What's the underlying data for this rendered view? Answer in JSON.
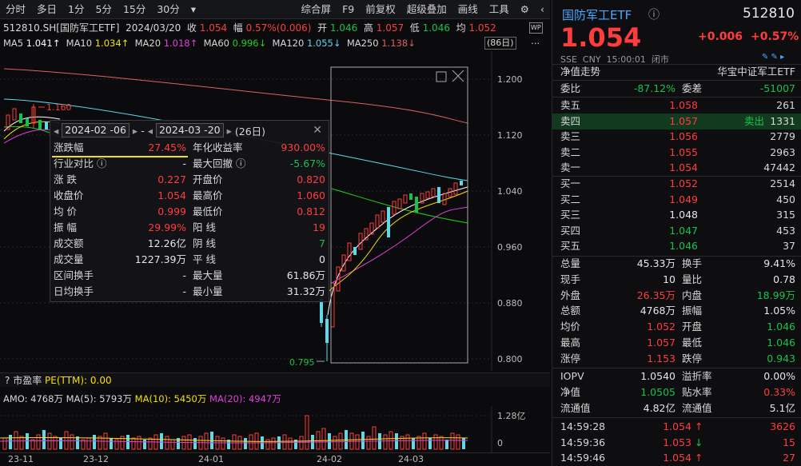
{
  "toolbar": {
    "left": [
      "分时",
      "多日",
      "1分",
      "5分",
      "15分",
      "30分"
    ],
    "right": [
      "综合屏",
      "F9",
      "前复权",
      "超级叠加",
      "画线",
      "工具"
    ]
  },
  "info": {
    "code_name": "512810.SH[国防军工ETF]",
    "date": "2024/03/20",
    "close_label": "收",
    "close": "1.054",
    "range_label": "幅",
    "range": "0.57%(0.006)",
    "open_label": "开",
    "open": "1.046",
    "high_label": "高",
    "high": "1.057",
    "low_label": "低",
    "low": "1.046",
    "avg_label": "均",
    "avg": "1.052",
    "wp": "WP"
  },
  "ma": {
    "ma5_label": "MA5",
    "ma5": "1.041↑",
    "ma10_label": "MA10",
    "ma10": "1.034↑",
    "ma20_label": "MA20",
    "ma20": "1.018↑",
    "ma60_label": "MA60",
    "ma60": "0.996↓",
    "ma120_label": "MA120",
    "ma120": "1.055↓",
    "ma250_label": "MA250",
    "ma250": "1.138↓",
    "days": "(86日)",
    "colors": {
      "ma5": "#ffffff",
      "ma10": "#f5e000",
      "ma20": "#e040e0",
      "ma60": "#20d020",
      "ma120": "#5fd8e8",
      "ma250": "#e06060"
    }
  },
  "chart": {
    "y_ticks": [
      "1.200",
      "1.120",
      "1.040",
      "0.960",
      "0.880",
      "0.800"
    ],
    "high_marker": "1.160",
    "low_marker": "0.795",
    "x_ticks": [
      "23-11",
      "23-12",
      "24-01",
      "24-02",
      "24-03"
    ]
  },
  "popup": {
    "start": "2024-02 -06",
    "dash": "-",
    "end": "2024-03 -20",
    "days": "(26日)",
    "rows": [
      {
        "l": "涨跌幅",
        "lv": "27.45%",
        "lc": "red",
        "r": "年化收益率",
        "rv": "930.00%",
        "rc": "red"
      },
      {
        "l": "行业对比 ⓘ",
        "lv": "-",
        "lc": "white",
        "r": "最大回撤 ⓘ",
        "rv": "-5.67%",
        "rc": "green"
      },
      {
        "l": "涨  跌",
        "lv": "0.227",
        "lc": "red",
        "r": "开盘价",
        "rv": "0.820",
        "rc": "red"
      },
      {
        "l": "收盘价",
        "lv": "1.054",
        "lc": "red",
        "r": "最高价",
        "rv": "1.060",
        "rc": "red"
      },
      {
        "l": "均  价",
        "lv": "0.999",
        "lc": "red",
        "r": "最低价",
        "rv": "0.812",
        "rc": "red"
      },
      {
        "l": "振  幅",
        "lv": "29.99%",
        "lc": "red",
        "r": "阳  线",
        "rv": "19",
        "rc": "red"
      },
      {
        "l": "成交额",
        "lv": "12.26亿",
        "lc": "white",
        "r": "阴  线",
        "rv": "7",
        "rc": "green"
      },
      {
        "l": "成交量",
        "lv": "1227.39万",
        "lc": "white",
        "r": "平  线",
        "rv": "0",
        "rc": "white"
      },
      {
        "l": "区间换手",
        "lv": "-",
        "lc": "white",
        "r": "最大量",
        "rv": "61.86万",
        "rc": "white"
      },
      {
        "l": "日均换手",
        "lv": "-",
        "lc": "white",
        "r": "最小量",
        "rv": "31.32万",
        "rc": "white"
      }
    ]
  },
  "pe": {
    "label": "市盈率",
    "value": "PE(TTM): 0.00"
  },
  "volume": {
    "amo_label": "AMO:",
    "amo": "4768万",
    "ma5_label": "MA(5):",
    "ma5": "5793万",
    "ma10_label": "MA(10):",
    "ma10": "5450万",
    "ma20_label": "MA(20):",
    "ma20": "4947万",
    "max_tick": "1.28亿",
    "zero_tick": "0"
  },
  "quote": {
    "name": "国防军工ETF",
    "code": "512810",
    "price": "1.054",
    "change": "+0.006",
    "change_pct": "+0.57%",
    "meta": "SSE  CNY  15:00:01  闭市",
    "tab_left": "净值走势",
    "tab_right": "华宝中证军工ETF",
    "weibi_label": "委比",
    "weibi": "-87.12%",
    "weicha_label": "委差",
    "weicha": "-51007",
    "asks": [
      {
        "l": "卖五",
        "p": "1.058",
        "v": "261"
      },
      {
        "l": "卖四",
        "p": "1.057",
        "v": "1331",
        "tag": "卖出"
      },
      {
        "l": "卖三",
        "p": "1.056",
        "v": "2779"
      },
      {
        "l": "卖二",
        "p": "1.055",
        "v": "2963"
      },
      {
        "l": "卖一",
        "p": "1.054",
        "v": "47442"
      }
    ],
    "bids": [
      {
        "l": "买一",
        "p": "1.052",
        "v": "2514",
        "c": "red"
      },
      {
        "l": "买二",
        "p": "1.049",
        "v": "450",
        "c": "red"
      },
      {
        "l": "买三",
        "p": "1.048",
        "v": "315",
        "c": "white"
      },
      {
        "l": "买四",
        "p": "1.047",
        "v": "453",
        "c": "green"
      },
      {
        "l": "买五",
        "p": "1.046",
        "v": "37",
        "c": "green"
      }
    ],
    "stats": [
      {
        "l": "总量",
        "v": "45.33万",
        "vc": "white",
        "r": "换手",
        "rv": "9.41%",
        "rc": "white"
      },
      {
        "l": "现手",
        "v": "10",
        "vc": "white",
        "r": "量比",
        "rv": "0.78",
        "rc": "white"
      },
      {
        "l": "外盘",
        "v": "26.35万",
        "vc": "red",
        "r": "内盘",
        "rv": "18.99万",
        "rc": "green"
      },
      {
        "l": "总额",
        "v": "4768万",
        "vc": "white",
        "r": "振幅",
        "rv": "1.05%",
        "rc": "white"
      },
      {
        "l": "均价",
        "v": "1.052",
        "vc": "red",
        "r": "开盘",
        "rv": "1.046",
        "rc": "green"
      },
      {
        "l": "最高",
        "v": "1.057",
        "vc": "red",
        "r": "最低",
        "rv": "1.046",
        "rc": "green"
      },
      {
        "l": "涨停",
        "v": "1.153",
        "vc": "red",
        "r": "跌停",
        "rv": "0.943",
        "rc": "green"
      }
    ],
    "nav": [
      {
        "l": "IOPV",
        "v": "1.0540",
        "vc": "white",
        "r": "溢折率",
        "rv": "0.00%",
        "rc": "white"
      },
      {
        "l": "净值",
        "v": "1.0505",
        "vc": "green",
        "r": "贴水率",
        "rv": "0.33%",
        "rc": "red"
      },
      {
        "l": "流通值",
        "v": "4.82亿",
        "vc": "white",
        "r": "流通值",
        "rv": "5.1亿",
        "rc": "white"
      }
    ],
    "ticks": [
      {
        "t": "14:59:28",
        "p": "1.054",
        "arrow": "↑",
        "ac": "red",
        "v": "3626"
      },
      {
        "t": "14:59:36",
        "p": "1.053",
        "arrow": "↓",
        "ac": "green",
        "v": "15"
      },
      {
        "t": "14:59:46",
        "p": "1.054",
        "arrow": "↑",
        "ac": "red",
        "v": "27"
      }
    ]
  }
}
